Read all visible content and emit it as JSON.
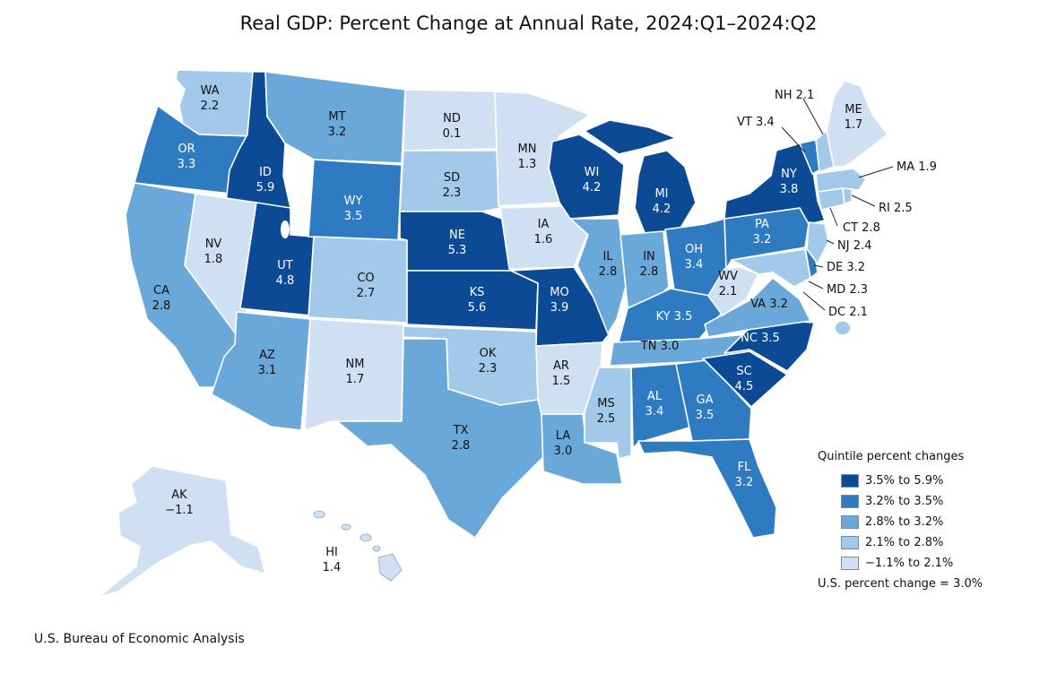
{
  "title": "Real GDP: Percent Change at Annual Rate, 2024:Q1–2024:Q2",
  "source": "U.S. Bureau of Economic Analysis",
  "colors": {
    "q1": "#0c4a96",
    "q2": "#2f7bc1",
    "q3": "#6aa8da",
    "q4": "#a3c9ea",
    "q5": "#cfe0f3"
  },
  "legend": {
    "title": "Quintile percent changes",
    "items": [
      {
        "label": "3.5% to 5.9%",
        "color": "#0c4a96"
      },
      {
        "label": "3.2% to 3.5%",
        "color": "#2f7bc1"
      },
      {
        "label": "2.8% to 3.2%",
        "color": "#6aa8da"
      },
      {
        "label": "2.1% to 2.8%",
        "color": "#a3c9ea"
      },
      {
        "label": "−1.1% to 2.1%",
        "color": "#cfe0f3"
      }
    ],
    "us_change": "U.S. percent change = 3.0%"
  },
  "states": {
    "WA": {
      "code": "WA",
      "value": "2.2"
    },
    "OR": {
      "code": "OR",
      "value": "3.3"
    },
    "CA": {
      "code": "CA",
      "value": "2.8"
    },
    "ID": {
      "code": "ID",
      "value": "5.9"
    },
    "NV": {
      "code": "NV",
      "value": "1.8"
    },
    "UT": {
      "code": "UT",
      "value": "4.8"
    },
    "AZ": {
      "code": "AZ",
      "value": "3.1"
    },
    "MT": {
      "code": "MT",
      "value": "3.2"
    },
    "WY": {
      "code": "WY",
      "value": "3.5"
    },
    "CO": {
      "code": "CO",
      "value": "2.7"
    },
    "NM": {
      "code": "NM",
      "value": "1.7"
    },
    "ND": {
      "code": "ND",
      "value": "0.1"
    },
    "SD": {
      "code": "SD",
      "value": "2.3"
    },
    "NE": {
      "code": "NE",
      "value": "5.3"
    },
    "KS": {
      "code": "KS",
      "value": "5.6"
    },
    "OK": {
      "code": "OK",
      "value": "2.3"
    },
    "TX": {
      "code": "TX",
      "value": "2.8"
    },
    "MN": {
      "code": "MN",
      "value": "1.3"
    },
    "IA": {
      "code": "IA",
      "value": "1.6"
    },
    "MO": {
      "code": "MO",
      "value": "3.9"
    },
    "AR": {
      "code": "AR",
      "value": "1.5"
    },
    "LA": {
      "code": "LA",
      "value": "3.0"
    },
    "WI": {
      "code": "WI",
      "value": "4.2"
    },
    "IL": {
      "code": "IL",
      "value": "2.8"
    },
    "MI": {
      "code": "MI",
      "value": "4.2"
    },
    "IN": {
      "code": "IN",
      "value": "2.8"
    },
    "OH": {
      "code": "OH",
      "value": "3.4"
    },
    "KY": {
      "code": "KY",
      "value": "3.5"
    },
    "TN": {
      "code": "TN",
      "value": "3.0"
    },
    "MS": {
      "code": "MS",
      "value": "2.5"
    },
    "AL": {
      "code": "AL",
      "value": "3.4"
    },
    "GA": {
      "code": "GA",
      "value": "3.5"
    },
    "FL": {
      "code": "FL",
      "value": "3.2"
    },
    "SC": {
      "code": "SC",
      "value": "4.5"
    },
    "NC": {
      "code": "NC",
      "value": "3.5"
    },
    "VA": {
      "code": "VA",
      "value": "3.2"
    },
    "WV": {
      "code": "WV",
      "value": "2.1"
    },
    "PA": {
      "code": "PA",
      "value": "3.2"
    },
    "NY": {
      "code": "NY",
      "value": "3.8"
    },
    "ME": {
      "code": "ME",
      "value": "1.7"
    },
    "NH": {
      "code": "NH",
      "value": "2.1"
    },
    "VT": {
      "code": "VT",
      "value": "3.4"
    },
    "MA": {
      "code": "MA",
      "value": "1.9"
    },
    "RI": {
      "code": "RI",
      "value": "2.5"
    },
    "CT": {
      "code": "CT",
      "value": "2.8"
    },
    "NJ": {
      "code": "NJ",
      "value": "2.4"
    },
    "DE": {
      "code": "DE",
      "value": "3.2"
    },
    "MD": {
      "code": "MD",
      "value": "2.3"
    },
    "DC": {
      "code": "DC",
      "value": "2.1"
    },
    "AK": {
      "code": "AK",
      "value": "−1.1"
    },
    "HI": {
      "code": "HI",
      "value": "1.4"
    }
  }
}
